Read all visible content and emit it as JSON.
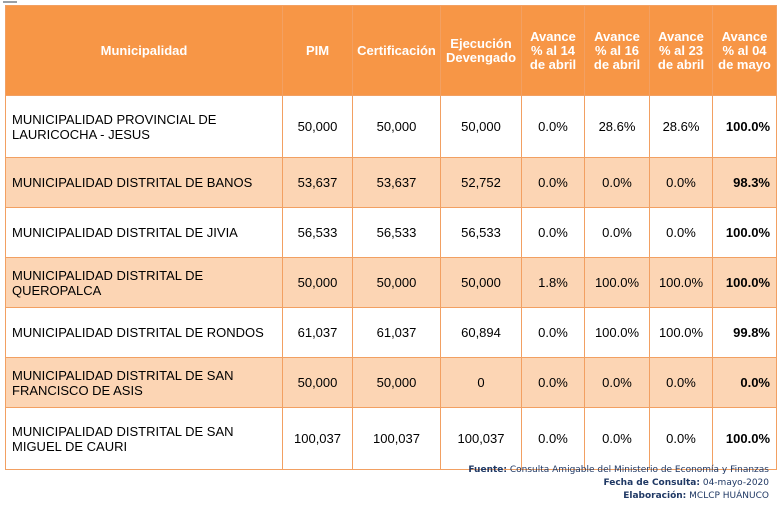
{
  "table": {
    "headers": [
      "Municipalidad",
      "PIM",
      "Certificación",
      "Ejecución\nDevengado",
      "Avance\n% al 14\nde abril",
      "Avance\n% al 16\nde abril",
      "Avance\n% al 23\nde abril",
      "Avance\n% al 04\nde mayo"
    ],
    "rows": [
      {
        "municipalidad": "MUNICIPALIDAD PROVINCIAL DE LAURICOCHA - JESUS",
        "pim": "50,000",
        "certificacion": "50,000",
        "devengado": "50,000",
        "avance_14_abril": "0.0%",
        "avance_16_abril": "28.6%",
        "avance_23_abril": "28.6%",
        "avance_04_mayo": "100.0%"
      },
      {
        "municipalidad": "MUNICIPALIDAD DISTRITAL DE BANOS",
        "pim": "53,637",
        "certificacion": "53,637",
        "devengado": "52,752",
        "avance_14_abril": "0.0%",
        "avance_16_abril": "0.0%",
        "avance_23_abril": "0.0%",
        "avance_04_mayo": "98.3%"
      },
      {
        "municipalidad": "MUNICIPALIDAD DISTRITAL DE JIVIA",
        "pim": "56,533",
        "certificacion": "56,533",
        "devengado": "56,533",
        "avance_14_abril": "0.0%",
        "avance_16_abril": "0.0%",
        "avance_23_abril": "0.0%",
        "avance_04_mayo": "100.0%"
      },
      {
        "municipalidad": "MUNICIPALIDAD DISTRITAL DE QUEROPALCA",
        "pim": "50,000",
        "certificacion": "50,000",
        "devengado": "50,000",
        "avance_14_abril": "1.8%",
        "avance_16_abril": "100.0%",
        "avance_23_abril": "100.0%",
        "avance_04_mayo": "100.0%"
      },
      {
        "municipalidad": "MUNICIPALIDAD DISTRITAL DE RONDOS",
        "pim": "61,037",
        "certificacion": "61,037",
        "devengado": "60,894",
        "avance_14_abril": "0.0%",
        "avance_16_abril": "100.0%",
        "avance_23_abril": "100.0%",
        "avance_04_mayo": "99.8%"
      },
      {
        "municipalidad": "MUNICIPALIDAD DISTRITAL DE SAN FRANCISCO DE ASIS",
        "pim": "50,000",
        "certificacion": "50,000",
        "devengado": "0",
        "avance_14_abril": "0.0%",
        "avance_16_abril": "0.0%",
        "avance_23_abril": "0.0%",
        "avance_04_mayo": "0.0%"
      },
      {
        "municipalidad": "MUNICIPALIDAD DISTRITAL DE SAN MIGUEL DE CAURI",
        "pim": "100,037",
        "certificacion": "100,037",
        "devengado": "100,037",
        "avance_14_abril": "0.0%",
        "avance_16_abril": "0.0%",
        "avance_23_abril": "0.0%",
        "avance_04_mayo": "100.0%"
      }
    ]
  },
  "footer": {
    "fuente_label": "Fuente:",
    "fuente_value": "Consulta Amigable del Ministerio de Economía y Finanzas",
    "fecha_label": "Fecha de Consulta:",
    "fecha_value": "04-mayo-2020",
    "elaboracion_label": "Elaboración:",
    "elaboracion_value": "MCLCP HUÁNUCO"
  },
  "colors": {
    "header_bg": "#f79646",
    "band_bg": "#fcd5b4",
    "border": "#f2a062",
    "footer_text": "#1f3864"
  }
}
